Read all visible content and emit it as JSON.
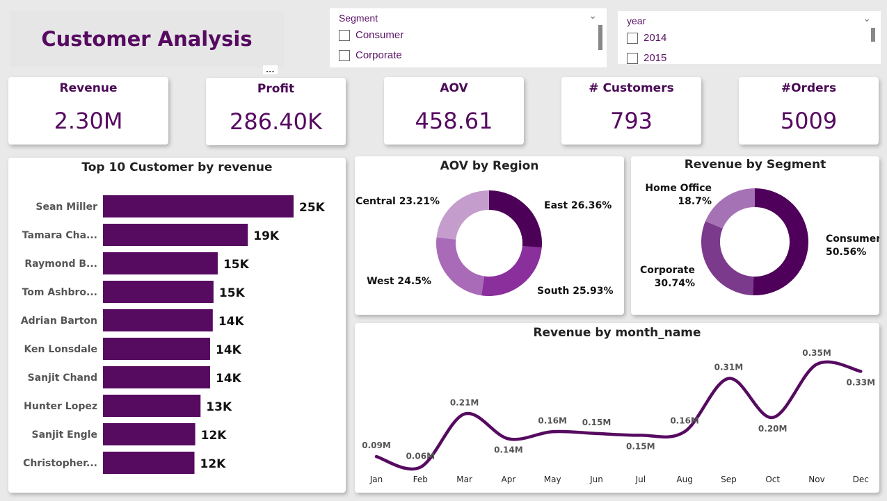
{
  "title": "Customer Analysis",
  "slicers": {
    "segment": {
      "label": "Segment",
      "items": [
        "Consumer",
        "Corporate"
      ]
    },
    "year": {
      "label": "year",
      "items": [
        "2014",
        "2015"
      ]
    }
  },
  "more_options": "...",
  "kpis": [
    {
      "label": "Revenue",
      "value": "2.30M"
    },
    {
      "label": "Profit",
      "value": "286.40K"
    },
    {
      "label": "AOV",
      "value": "458.61"
    },
    {
      "label": "# Customers",
      "value": "793"
    },
    {
      "label": "#Orders",
      "value": "5009"
    }
  ],
  "colors": {
    "accent": "#560a60",
    "bar": "#560a60",
    "line": "#560a60"
  },
  "chart_data": [
    {
      "type": "bar",
      "orientation": "horizontal",
      "title": "Top 10 Customer by revenue",
      "categories": [
        "Sean Miller",
        "Tamara Cha...",
        "Raymond B...",
        "Tom Ashbro...",
        "Adrian Barton",
        "Ken Lonsdale",
        "Sanjit Chand",
        "Hunter Lopez",
        "Sanjit Engle",
        "Christopher..."
      ],
      "values": [
        25,
        19,
        15.05,
        14.5,
        14.4,
        14.05,
        14.05,
        12.8,
        12.1,
        12.0
      ],
      "labels": [
        "25K",
        "19K",
        "15K",
        "15K",
        "14K",
        "14K",
        "14K",
        "13K",
        "12K",
        "12K"
      ],
      "unit": "K"
    },
    {
      "type": "pie",
      "donut": true,
      "title": "AOV by Region",
      "slices": [
        {
          "name": "East",
          "value": 26.36,
          "label": "East 26.36%",
          "color": "#4d0058"
        },
        {
          "name": "South",
          "value": 25.93,
          "label": "South 25.93%",
          "color": "#8a2f9b"
        },
        {
          "name": "West",
          "value": 24.5,
          "label": "West 24.5%",
          "color": "#a96bb7"
        },
        {
          "name": "Central",
          "value": 23.21,
          "label": "Central 23.21%",
          "color": "#c49dcd"
        }
      ]
    },
    {
      "type": "pie",
      "donut": true,
      "title": "Revenue by Segment",
      "slices": [
        {
          "name": "Consumer",
          "value": 50.56,
          "label": [
            "Consumer",
            "50.56%"
          ],
          "color": "#4f005a"
        },
        {
          "name": "Corporate",
          "value": 30.74,
          "label": [
            "Corporate",
            "30.74%"
          ],
          "color": "#7c3a8c"
        },
        {
          "name": "Home Office",
          "value": 18.7,
          "label": [
            "Home Office",
            "18.7%"
          ],
          "color": "#a672b6"
        }
      ]
    },
    {
      "type": "line",
      "title": "Revenue by month_name",
      "categories": [
        "Jan",
        "Feb",
        "Mar",
        "Apr",
        "May",
        "Jun",
        "Jul",
        "Aug",
        "Sep",
        "Oct",
        "Nov",
        "Dec"
      ],
      "values": [
        0.09,
        0.06,
        0.21,
        0.14,
        0.16,
        0.155,
        0.15,
        0.16,
        0.31,
        0.2,
        0.35,
        0.33
      ],
      "labels": [
        "0.09M",
        "0.06M",
        "0.21M",
        "0.14M",
        "0.16M",
        "0.15M",
        "0.15M",
        "0.16M",
        "0.31M",
        "0.20M",
        "0.35M",
        "0.33M"
      ],
      "ylim": [
        0,
        0.37
      ],
      "grid": false
    }
  ]
}
